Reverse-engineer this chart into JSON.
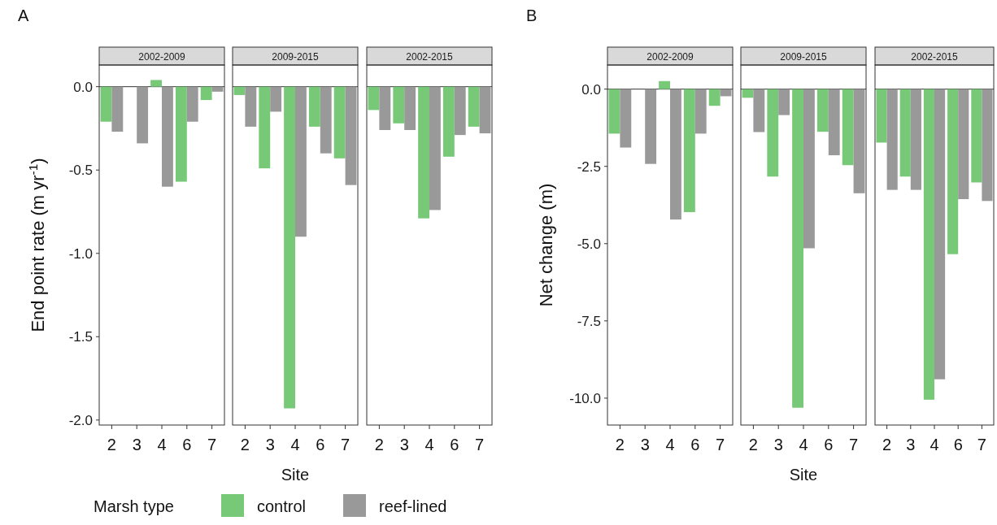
{
  "chart_data": [
    {
      "type": "bar",
      "title": "2002-2009",
      "annotations": [
        "A"
      ],
      "ylabel": "End point rate (m yr$^{-1}$)",
      "categories": [
        "2",
        "3",
        "4",
        "6",
        "7"
      ],
      "ylim": [
        -2.03,
        0.13
      ],
      "yticks": [
        {
          "value": 0,
          "label": "0.0"
        },
        {
          "value": -0.5,
          "label": "-0.5"
        },
        {
          "value": -1,
          "label": "-1.0"
        },
        {
          "value": -1.5,
          "label": "-1.5"
        },
        {
          "value": -2,
          "label": "-2.0"
        }
      ],
      "ref_lines": [
        {
          "axis": "y",
          "value": 0
        }
      ],
      "series": [
        {
          "color": "#77c977",
          "values": [
            -0.21,
            null,
            0.04,
            -0.57,
            -0.08
          ]
        },
        {
          "color": "#999999",
          "values": [
            -0.27,
            -0.34,
            -0.6,
            -0.21,
            -0.03
          ]
        }
      ]
    },
    {
      "type": "bar",
      "title": "2009-2015",
      "xlabel": "Site",
      "legend": "bottom",
      "legend_title": "Marsh type",
      "tick_labels": "x",
      "categories": [
        "2",
        "3",
        "4",
        "6",
        "7"
      ],
      "ylim": [
        -2.03,
        0.13
      ],
      "ref_lines": [
        {
          "axis": "y",
          "value": 0
        }
      ],
      "series": [
        {
          "name": "control",
          "color": "#77c977",
          "values": [
            -0.05,
            -0.49,
            -1.93,
            -0.24,
            -0.43
          ]
        },
        {
          "name": "reef-lined",
          "color": "#999999",
          "values": [
            -0.24,
            -0.15,
            -0.9,
            -0.4,
            -0.59
          ]
        }
      ]
    },
    {
      "type": "bar",
      "title": "2002-2015",
      "tick_labels": "x",
      "categories": [
        "2",
        "3",
        "4",
        "6",
        "7"
      ],
      "ylim": [
        -2.03,
        0.13
      ],
      "ref_lines": [
        {
          "axis": "y",
          "value": 0
        }
      ],
      "series": [
        {
          "color": "#77c977",
          "values": [
            -0.14,
            -0.22,
            -0.79,
            -0.42,
            -0.24
          ]
        },
        {
          "color": "#999999",
          "values": [
            -0.26,
            -0.26,
            -0.74,
            -0.29,
            -0.28
          ]
        }
      ]
    },
    {
      "type": "bar",
      "title": "2002-2009",
      "annotations": [
        "B"
      ],
      "ylabel": "Net change (m)",
      "categories": [
        "2",
        "3",
        "4",
        "6",
        "7"
      ],
      "ylim": [
        -10.87,
        0.78
      ],
      "yticks": [
        {
          "value": 0,
          "label": "0.0"
        },
        {
          "value": -2.5,
          "label": "-2.5"
        },
        {
          "value": -5,
          "label": "-5.0"
        },
        {
          "value": -7.5,
          "label": "-7.5"
        },
        {
          "value": -10,
          "label": "-10.0"
        }
      ],
      "ref_lines": [
        {
          "axis": "y",
          "value": 0
        }
      ],
      "series": [
        {
          "color": "#77c977",
          "values": [
            -1.44,
            null,
            0.26,
            -3.98,
            -0.54
          ]
        },
        {
          "color": "#999999",
          "values": [
            -1.89,
            -2.42,
            -4.22,
            -1.44,
            -0.23
          ]
        }
      ]
    },
    {
      "type": "bar",
      "title": "2009-2015",
      "xlabel": "Site",
      "tick_labels": "x",
      "categories": [
        "2",
        "3",
        "4",
        "6",
        "7"
      ],
      "ylim": [
        -10.87,
        0.78
      ],
      "ref_lines": [
        {
          "axis": "y",
          "value": 0
        }
      ],
      "series": [
        {
          "color": "#77c977",
          "values": [
            -0.28,
            -2.83,
            -10.31,
            -1.38,
            -2.46
          ]
        },
        {
          "color": "#999999",
          "values": [
            -1.39,
            -0.84,
            -5.15,
            -2.14,
            -3.37
          ]
        }
      ]
    },
    {
      "type": "bar",
      "title": "2002-2015",
      "tick_labels": "x",
      "categories": [
        "2",
        "3",
        "4",
        "6",
        "7"
      ],
      "ylim": [
        -10.87,
        0.78
      ],
      "ref_lines": [
        {
          "axis": "y",
          "value": 0
        }
      ],
      "series": [
        {
          "color": "#77c977",
          "values": [
            -1.73,
            -2.83,
            -10.05,
            -5.34,
            -3.02
          ]
        },
        {
          "color": "#999999",
          "values": [
            -3.26,
            -3.26,
            -9.39,
            -3.56,
            -3.62
          ]
        }
      ]
    }
  ]
}
